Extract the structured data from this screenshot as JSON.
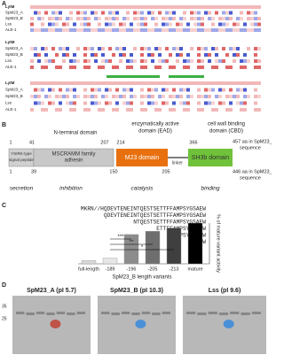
{
  "panel_a": {
    "letter": "A",
    "row_labels": [
      "LytM",
      "SpM23_A",
      "SpM23_B",
      "Lss",
      "ALE-1"
    ]
  },
  "panel_b": {
    "letter": "B",
    "headings": [
      "N-terminal domain",
      "enzymatically active",
      "domain (EAD)",
      "cell wall binding",
      "domain (CBD)"
    ],
    "top_numbers": [
      "1",
      "41",
      "207",
      "214",
      "366"
    ],
    "top_end": "457 aa in SpM23_A",
    "top_end2": "sequence",
    "bottom_numbers": [
      "1",
      "39",
      "150",
      "205"
    ],
    "bottom_end": "446 aa in SpM23_B",
    "bottom_end2": "sequence",
    "domains": [
      "YSIRK-type",
      "signal peptide",
      "MSCRAMM family",
      "adhesin",
      "M23 domain",
      "linker",
      "SH3b domain"
    ],
    "roles": [
      "secretion",
      "inhibition",
      "catalysis",
      "binding"
    ]
  },
  "chart_data": {
    "type": "bar",
    "letter": "C",
    "categories": [
      "full-length",
      "-189",
      "-196",
      "-205",
      "-213",
      "mature"
    ],
    "values": [
      8,
      14,
      72,
      80,
      88,
      100
    ],
    "colors": [
      "#d9d9d9",
      "#e6e6e6",
      "#8c8c8c",
      "#6e6e6e",
      "#3f3f3f",
      "#000000"
    ],
    "ylim": [
      0,
      100
    ],
    "ylabel": "% of mature variant activity",
    "xlabel": "SpM23_B length variants",
    "sequences": [
      "MKRN//HQDEVTENEINTQESTSETTFFAMPSYGSAEW",
      "QDEVTENEINTQESTSETTFFAMPSYGSAEW",
      "NTQESTSETTFFAMPSYGSAEW",
      "ETTFFAMPSYGSAEW",
      "PSYGSAEW",
      "SAEW"
    ],
    "significance": [
      "***",
      "**",
      "*"
    ]
  },
  "panel_d": {
    "letter": "D",
    "titles": [
      "SpM23_A (pI 5.7)",
      "SpM23_B (pI 10.3)",
      "Lss (pI 9.6)"
    ],
    "markers": [
      "35",
      "25"
    ]
  }
}
